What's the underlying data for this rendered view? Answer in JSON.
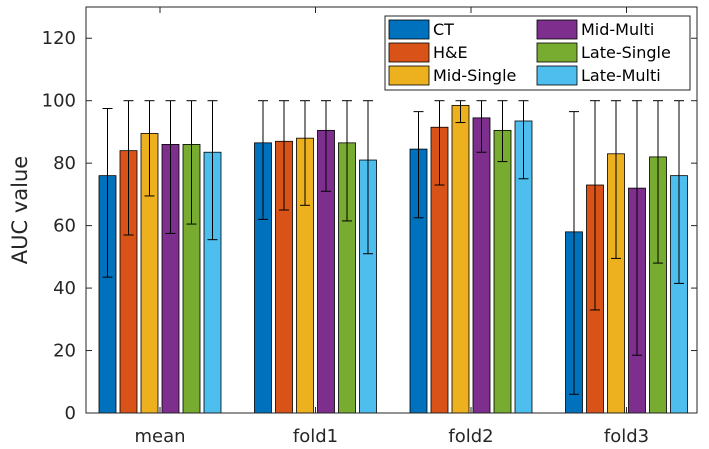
{
  "chart_data": {
    "type": "bar",
    "title": "",
    "xlabel": "",
    "ylabel": "AUC value",
    "ylim": [
      0,
      130
    ],
    "yticks": [
      0,
      20,
      40,
      60,
      80,
      100,
      120
    ],
    "grid": false,
    "legend_position": "top-right",
    "categories": [
      "mean",
      "fold1",
      "fold2",
      "fold3"
    ],
    "series": [
      {
        "name": "CT",
        "color": "#0072BD",
        "values": [
          76,
          86.5,
          84.5,
          58
        ],
        "err_low": [
          43.5,
          62,
          62.5,
          6
        ],
        "err_high": [
          97.5,
          100,
          96.5,
          96.5
        ]
      },
      {
        "name": "H&E",
        "color": "#D95319",
        "values": [
          84,
          87,
          91.5,
          73
        ],
        "err_low": [
          57,
          65,
          73,
          33
        ],
        "err_high": [
          100,
          100,
          100,
          100
        ]
      },
      {
        "name": "Mid-Single",
        "color": "#EDB120",
        "values": [
          89.5,
          88,
          98.5,
          83
        ],
        "err_low": [
          69.5,
          66.5,
          93,
          49.5
        ],
        "err_high": [
          100,
          100,
          100,
          100
        ]
      },
      {
        "name": "Mid-Multi",
        "color": "#7E2F8E",
        "values": [
          86,
          90.5,
          94.5,
          72
        ],
        "err_low": [
          57.5,
          71,
          83.5,
          18.5
        ],
        "err_high": [
          100,
          100,
          100,
          100
        ]
      },
      {
        "name": "Late-Single",
        "color": "#77AC30",
        "values": [
          86,
          86.5,
          90.5,
          82
        ],
        "err_low": [
          60.5,
          61.5,
          80.5,
          48
        ],
        "err_high": [
          100,
          100,
          100,
          100
        ]
      },
      {
        "name": "Late-Multi",
        "color": "#4DBEEE",
        "values": [
          83.5,
          81,
          93.5,
          76
        ],
        "err_low": [
          55.5,
          51,
          75,
          41.5
        ],
        "err_high": [
          100,
          100,
          100,
          100
        ]
      }
    ]
  }
}
